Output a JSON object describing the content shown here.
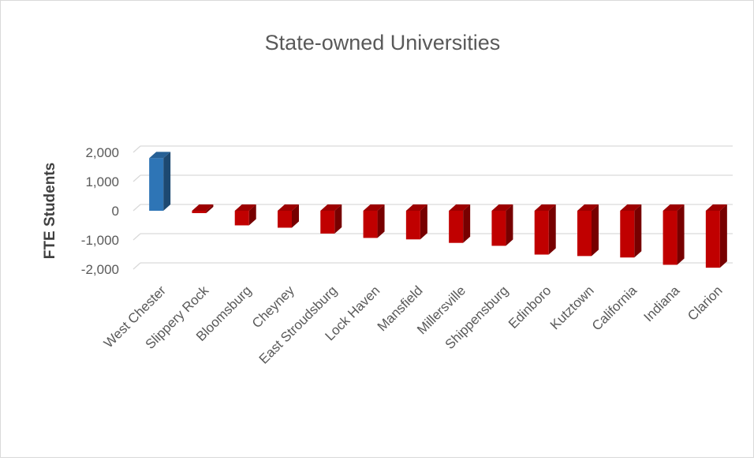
{
  "chart_data": {
    "type": "bar",
    "title": "State-owned Universities",
    "xlabel": "",
    "ylabel": "FTE Students",
    "ylim": [
      -2000,
      2000
    ],
    "y_ticks": [
      2000,
      1000,
      0,
      -1000,
      -2000
    ],
    "y_tick_labels": [
      "2,000",
      "1,000",
      "0",
      "-1,000",
      "-2,000"
    ],
    "grid": true,
    "legend": "none",
    "bar_style": "3d",
    "categories": [
      "West Chester",
      "Slippery Rock",
      "Bloomsburg",
      "Cheyney",
      "East Stroudsburg",
      "Lock Haven",
      "Mansfield",
      "Millersville",
      "Shippensburg",
      "Edinboro",
      "Kutztown",
      "California",
      "Indiana",
      "Clarion"
    ],
    "values": [
      1800,
      -80,
      -500,
      -580,
      -780,
      -930,
      -980,
      -1100,
      -1200,
      -1500,
      -1550,
      -1600,
      -1850,
      -1950
    ],
    "colors": {
      "positive": "#2e75b6",
      "negative": "#c00000",
      "gridline": "#d9d9d9",
      "text": "#595959",
      "axis_title": "#404040"
    }
  }
}
